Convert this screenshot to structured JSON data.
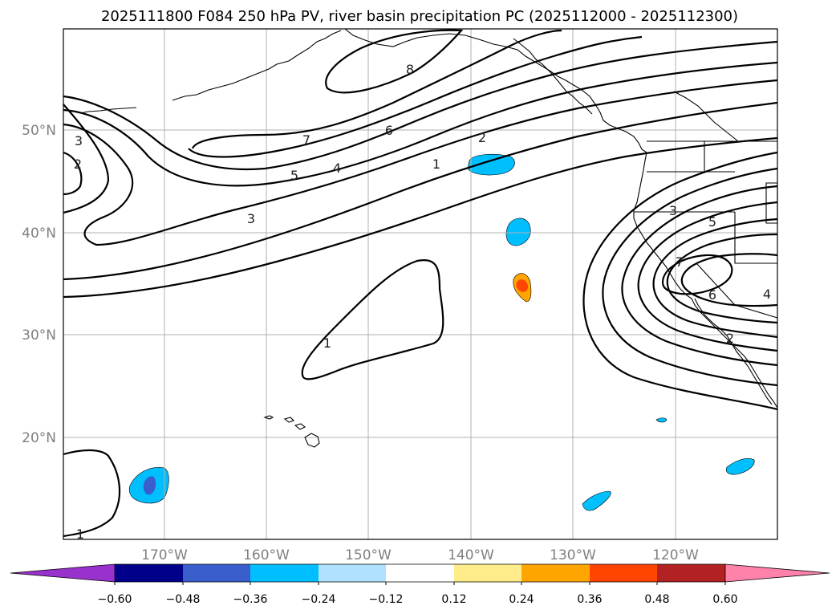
{
  "title": "2025111800 F084 250 hPa PV, river basin precipitation PC (2025112000 - 2025112300)",
  "lat_labels": [
    "50°N",
    "40°N",
    "30°N",
    "20°N"
  ],
  "lon_labels": [
    "170°W",
    "160°W",
    "150°W",
    "140°W",
    "130°W",
    "120°W"
  ],
  "contour_labels": {
    "west_3": "3",
    "west_2": "2",
    "mid_7": "7",
    "mid_5": "5",
    "mid_4": "4",
    "mid_6": "6",
    "mid_8": "8",
    "mid_3": "3",
    "mid_2": "2",
    "mid_1": "1",
    "center_1": "1",
    "sw_1": "1",
    "east_3": "3",
    "east_5": "5",
    "east_7": "7",
    "east_6": "6",
    "east_4": "4",
    "east_2": "2"
  },
  "colorbar": {
    "ticks": [
      "−0.60",
      "−0.48",
      "−0.36",
      "−0.24",
      "−0.12",
      "0.12",
      "0.24",
      "0.36",
      "0.48",
      "0.60"
    ],
    "colors": [
      "#9932cc",
      "#00008b",
      "#3a5fcd",
      "#00bfff",
      "#b0e2ff",
      "#ffffff",
      "#ffec8b",
      "#ffa500",
      "#ff4500",
      "#b22222",
      "#ff82ab"
    ]
  },
  "fill_colors": {
    "cyan": "#00bfff",
    "blue": "#3a5fcd",
    "orange": "#ffa500",
    "red_orange": "#ff4500"
  }
}
